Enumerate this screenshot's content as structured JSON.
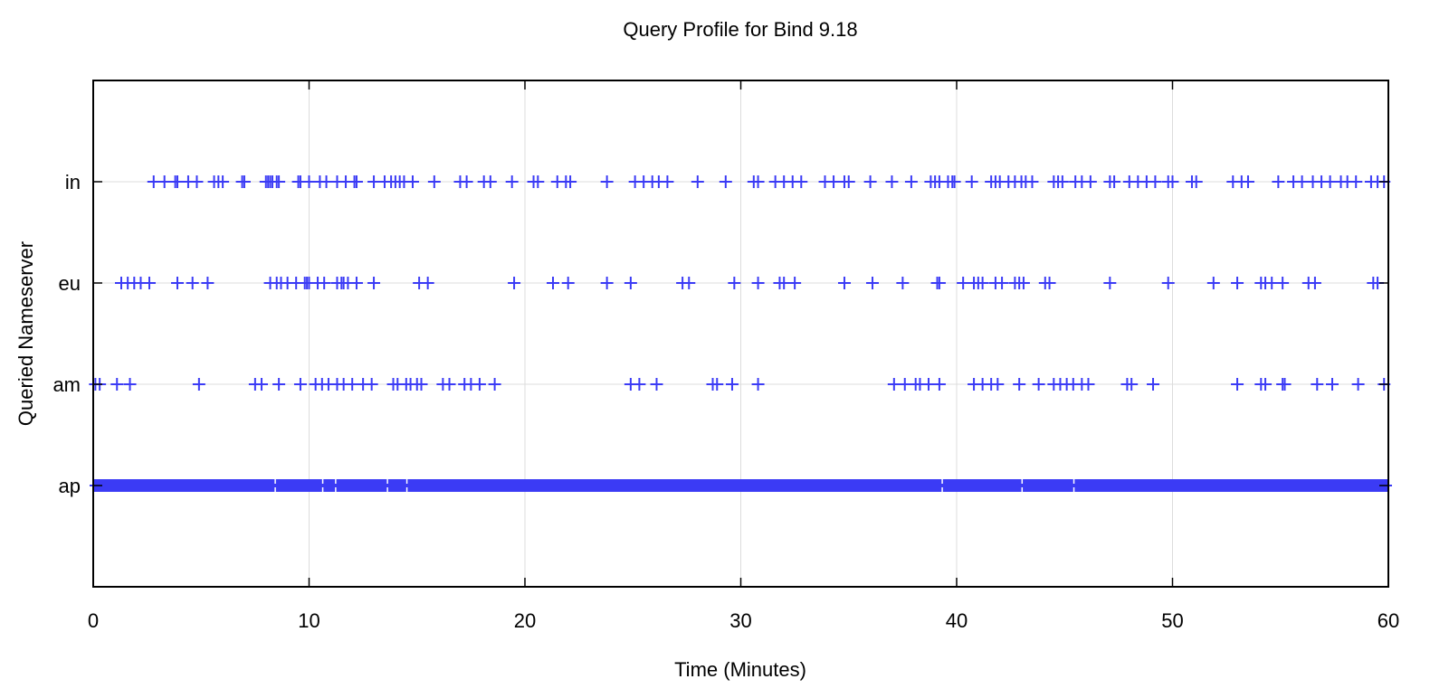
{
  "chart_data": {
    "type": "scatter",
    "title": "Query Profile for Bind 9.18",
    "xlabel": "Time (Minutes)",
    "ylabel": "Queried Nameserver",
    "xlim": [
      0,
      60
    ],
    "xticks": [
      0,
      10,
      20,
      30,
      40,
      50,
      60
    ],
    "xtick_labels": [
      "0",
      "10",
      "20",
      "30",
      "40",
      "50",
      "60"
    ],
    "categories": [
      "ap",
      "am",
      "eu",
      "in"
    ],
    "grid": true,
    "marker": "plus",
    "color": "#3b3bf5",
    "series": [
      {
        "category": "in",
        "x": [
          2.8,
          3.3,
          3.8,
          3.9,
          4.4,
          4.8,
          5.6,
          5.8,
          6.0,
          6.9,
          7.0,
          8.0,
          8.1,
          8.2,
          8.3,
          8.5,
          8.6,
          9.5,
          9.6,
          10.0,
          10.5,
          10.8,
          11.3,
          11.7,
          12.1,
          12.2,
          13.0,
          13.5,
          13.8,
          14.0,
          14.2,
          14.4,
          14.8,
          15.8,
          17.0,
          17.3,
          18.1,
          18.4,
          19.4,
          20.4,
          20.6,
          21.5,
          21.9,
          22.1,
          23.8,
          25.1,
          25.5,
          25.9,
          26.2,
          26.6,
          28.0,
          29.3,
          30.6,
          30.8,
          31.6,
          32.0,
          32.4,
          32.8,
          33.9,
          34.3,
          34.8,
          35.0,
          36.0,
          37.0,
          37.9,
          38.8,
          39.0,
          39.2,
          39.6,
          39.8,
          39.9,
          40.7,
          41.6,
          41.8,
          42.0,
          42.4,
          42.7,
          43.0,
          43.2,
          43.5,
          44.5,
          44.7,
          44.9,
          45.5,
          45.8,
          46.2,
          47.1,
          47.3,
          48.0,
          48.4,
          48.8,
          49.2,
          49.8,
          50.0,
          50.9,
          51.1,
          52.8,
          53.2,
          53.5,
          54.9,
          55.6,
          56.0,
          56.5,
          56.9,
          57.3,
          57.8,
          58.1,
          58.5,
          59.2,
          59.5,
          59.8
        ]
      },
      {
        "category": "eu",
        "x": [
          1.3,
          1.6,
          1.9,
          2.2,
          2.6,
          3.9,
          4.6,
          5.3,
          8.2,
          8.5,
          8.7,
          9.0,
          9.4,
          9.8,
          9.9,
          10.0,
          10.4,
          10.7,
          11.3,
          11.5,
          11.6,
          11.8,
          12.2,
          13.0,
          15.1,
          15.5,
          19.5,
          21.3,
          22.0,
          23.8,
          24.9,
          27.3,
          27.6,
          29.7,
          30.8,
          31.8,
          32.0,
          32.5,
          34.8,
          36.1,
          37.5,
          39.1,
          39.2,
          40.3,
          40.8,
          41.0,
          41.2,
          41.8,
          42.1,
          42.7,
          42.9,
          43.1,
          44.1,
          44.3,
          47.1,
          49.8,
          51.9,
          53.0,
          54.1,
          54.3,
          54.6,
          55.1,
          56.3,
          56.6,
          59.3,
          59.5
        ]
      },
      {
        "category": "am",
        "x": [
          0.1,
          0.3,
          1.1,
          1.7,
          4.9,
          7.5,
          7.8,
          8.6,
          9.6,
          10.3,
          10.6,
          10.9,
          11.3,
          11.6,
          12.0,
          12.5,
          12.9,
          13.9,
          14.1,
          14.5,
          14.7,
          15.0,
          15.2,
          16.2,
          16.5,
          17.2,
          17.5,
          17.9,
          18.6,
          24.9,
          25.3,
          26.1,
          28.7,
          28.9,
          29.6,
          30.8,
          37.1,
          37.6,
          38.1,
          38.3,
          38.7,
          39.2,
          40.8,
          41.2,
          41.6,
          41.9,
          42.9,
          43.8,
          44.5,
          44.8,
          45.1,
          45.4,
          45.8,
          46.1,
          47.9,
          48.1,
          49.1,
          53.0,
          54.1,
          54.3,
          55.1,
          55.2,
          56.7,
          57.4,
          58.6,
          59.8
        ]
      },
      {
        "category": "ap",
        "x_range": [
          0,
          60
        ],
        "density": "continuous",
        "gaps": [
          8.4,
          10.6,
          11.2,
          13.6,
          14.5,
          39.3,
          43.0,
          45.4
        ]
      }
    ]
  }
}
